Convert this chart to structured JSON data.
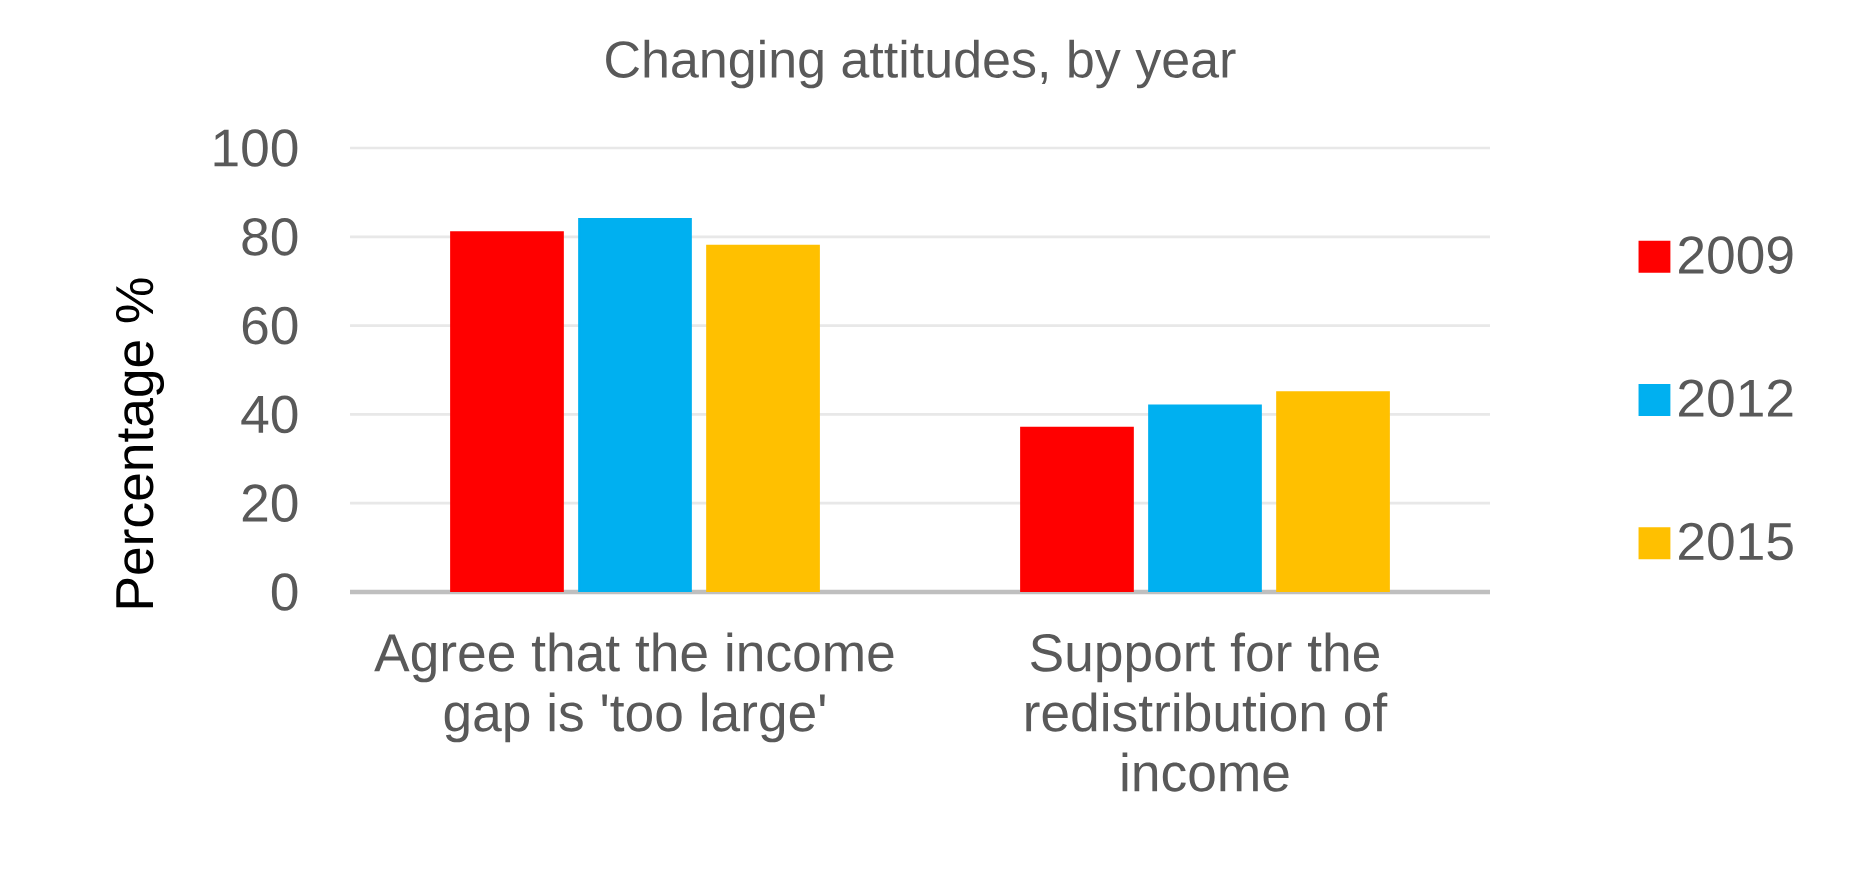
{
  "chart_data": {
    "type": "bar",
    "title": "Changing attitudes, by year",
    "ylabel": "Percentage %",
    "categories": [
      "Agree that the income gap is 'too large'",
      "Support for the redistribution of income"
    ],
    "series": [
      {
        "name": "2009",
        "color": "#ff0000",
        "values": [
          81,
          37
        ]
      },
      {
        "name": "2012",
        "color": "#00b0f0",
        "values": [
          84,
          42
        ]
      },
      {
        "name": "2015",
        "color": "#ffc000",
        "values": [
          78,
          45
        ]
      }
    ],
    "ylim": [
      0,
      100
    ],
    "yticks": [
      0,
      20,
      40,
      60,
      80,
      100
    ],
    "grid": "y",
    "legend": "right"
  }
}
